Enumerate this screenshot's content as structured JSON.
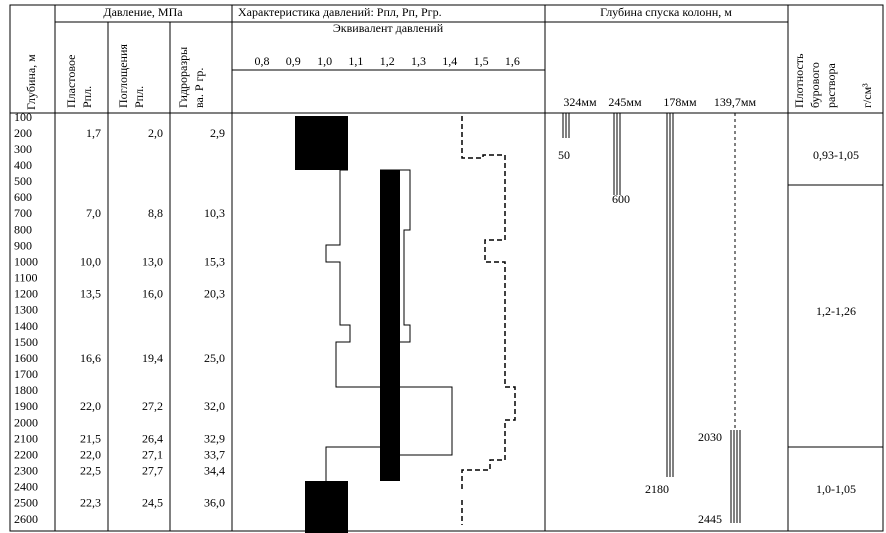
{
  "header": {
    "depth": "Глубина, м",
    "pressure": "Давление, МПа",
    "formation": [
      "Пластовое",
      "Рпл."
    ],
    "absorption": [
      "Поглощения",
      "Рпл."
    ],
    "fracture": [
      "Гидроразры",
      "ва. Р гр."
    ],
    "characteristic": "Характеристика давлений:   Рпл, Рп, Ргр.",
    "equivalent": "Эквивалент давлений",
    "scale": [
      "0,8",
      "0,9",
      "1,0",
      "1,1",
      "1,2",
      "1,3",
      "1,4",
      "1,5",
      "1,6"
    ],
    "casing_title": "Глубина спуска колонн, м",
    "casings": [
      "324мм",
      "245мм",
      "178мм",
      "139,7мм"
    ],
    "density": [
      "Плотность",
      "бурового",
      "раствора"
    ],
    "density_unit": "г/см³"
  },
  "rows": [
    [
      "100",
      null,
      null,
      null
    ],
    [
      "200",
      "1,7",
      "2,0",
      "2,9"
    ],
    [
      "300",
      null,
      null,
      null
    ],
    [
      "400",
      null,
      null,
      null
    ],
    [
      "500",
      null,
      null,
      null
    ],
    [
      "600",
      null,
      null,
      null
    ],
    [
      "700",
      "7,0",
      "8,8",
      "10,3"
    ],
    [
      "800",
      null,
      null,
      null
    ],
    [
      "900",
      null,
      null,
      null
    ],
    [
      "1000",
      "10,0",
      "13,0",
      "15,3"
    ],
    [
      "1100",
      null,
      null,
      null
    ],
    [
      "1200",
      "13,5",
      "16,0",
      "20,3"
    ],
    [
      "1300",
      null,
      null,
      null
    ],
    [
      "1400",
      null,
      null,
      null
    ],
    [
      "1500",
      null,
      null,
      null
    ],
    [
      "1600",
      "16,6",
      "19,4",
      "25,0"
    ],
    [
      "1700",
      null,
      null,
      null
    ],
    [
      "1800",
      null,
      null,
      null
    ],
    [
      "1900",
      "22,0",
      "27,2",
      "32,0"
    ],
    [
      "2000",
      null,
      null,
      null
    ],
    [
      "2100",
      "21,5",
      "26,4",
      "32,9"
    ],
    [
      "2200",
      "22,0",
      "27,1",
      "33,7"
    ],
    [
      "2300",
      "22,5",
      "27,7",
      "34,4"
    ],
    [
      "2400",
      null,
      null,
      null
    ],
    [
      "2500",
      "22,3",
      "24,5",
      "36,0"
    ],
    [
      "2600",
      null,
      null,
      null
    ]
  ],
  "casing_depths": [
    "50",
    "600",
    "2180",
    "2030",
    "2445"
  ],
  "densities": [
    "0,93-1,05",
    "1,2-1,26",
    "1,0-1,05"
  ]
}
